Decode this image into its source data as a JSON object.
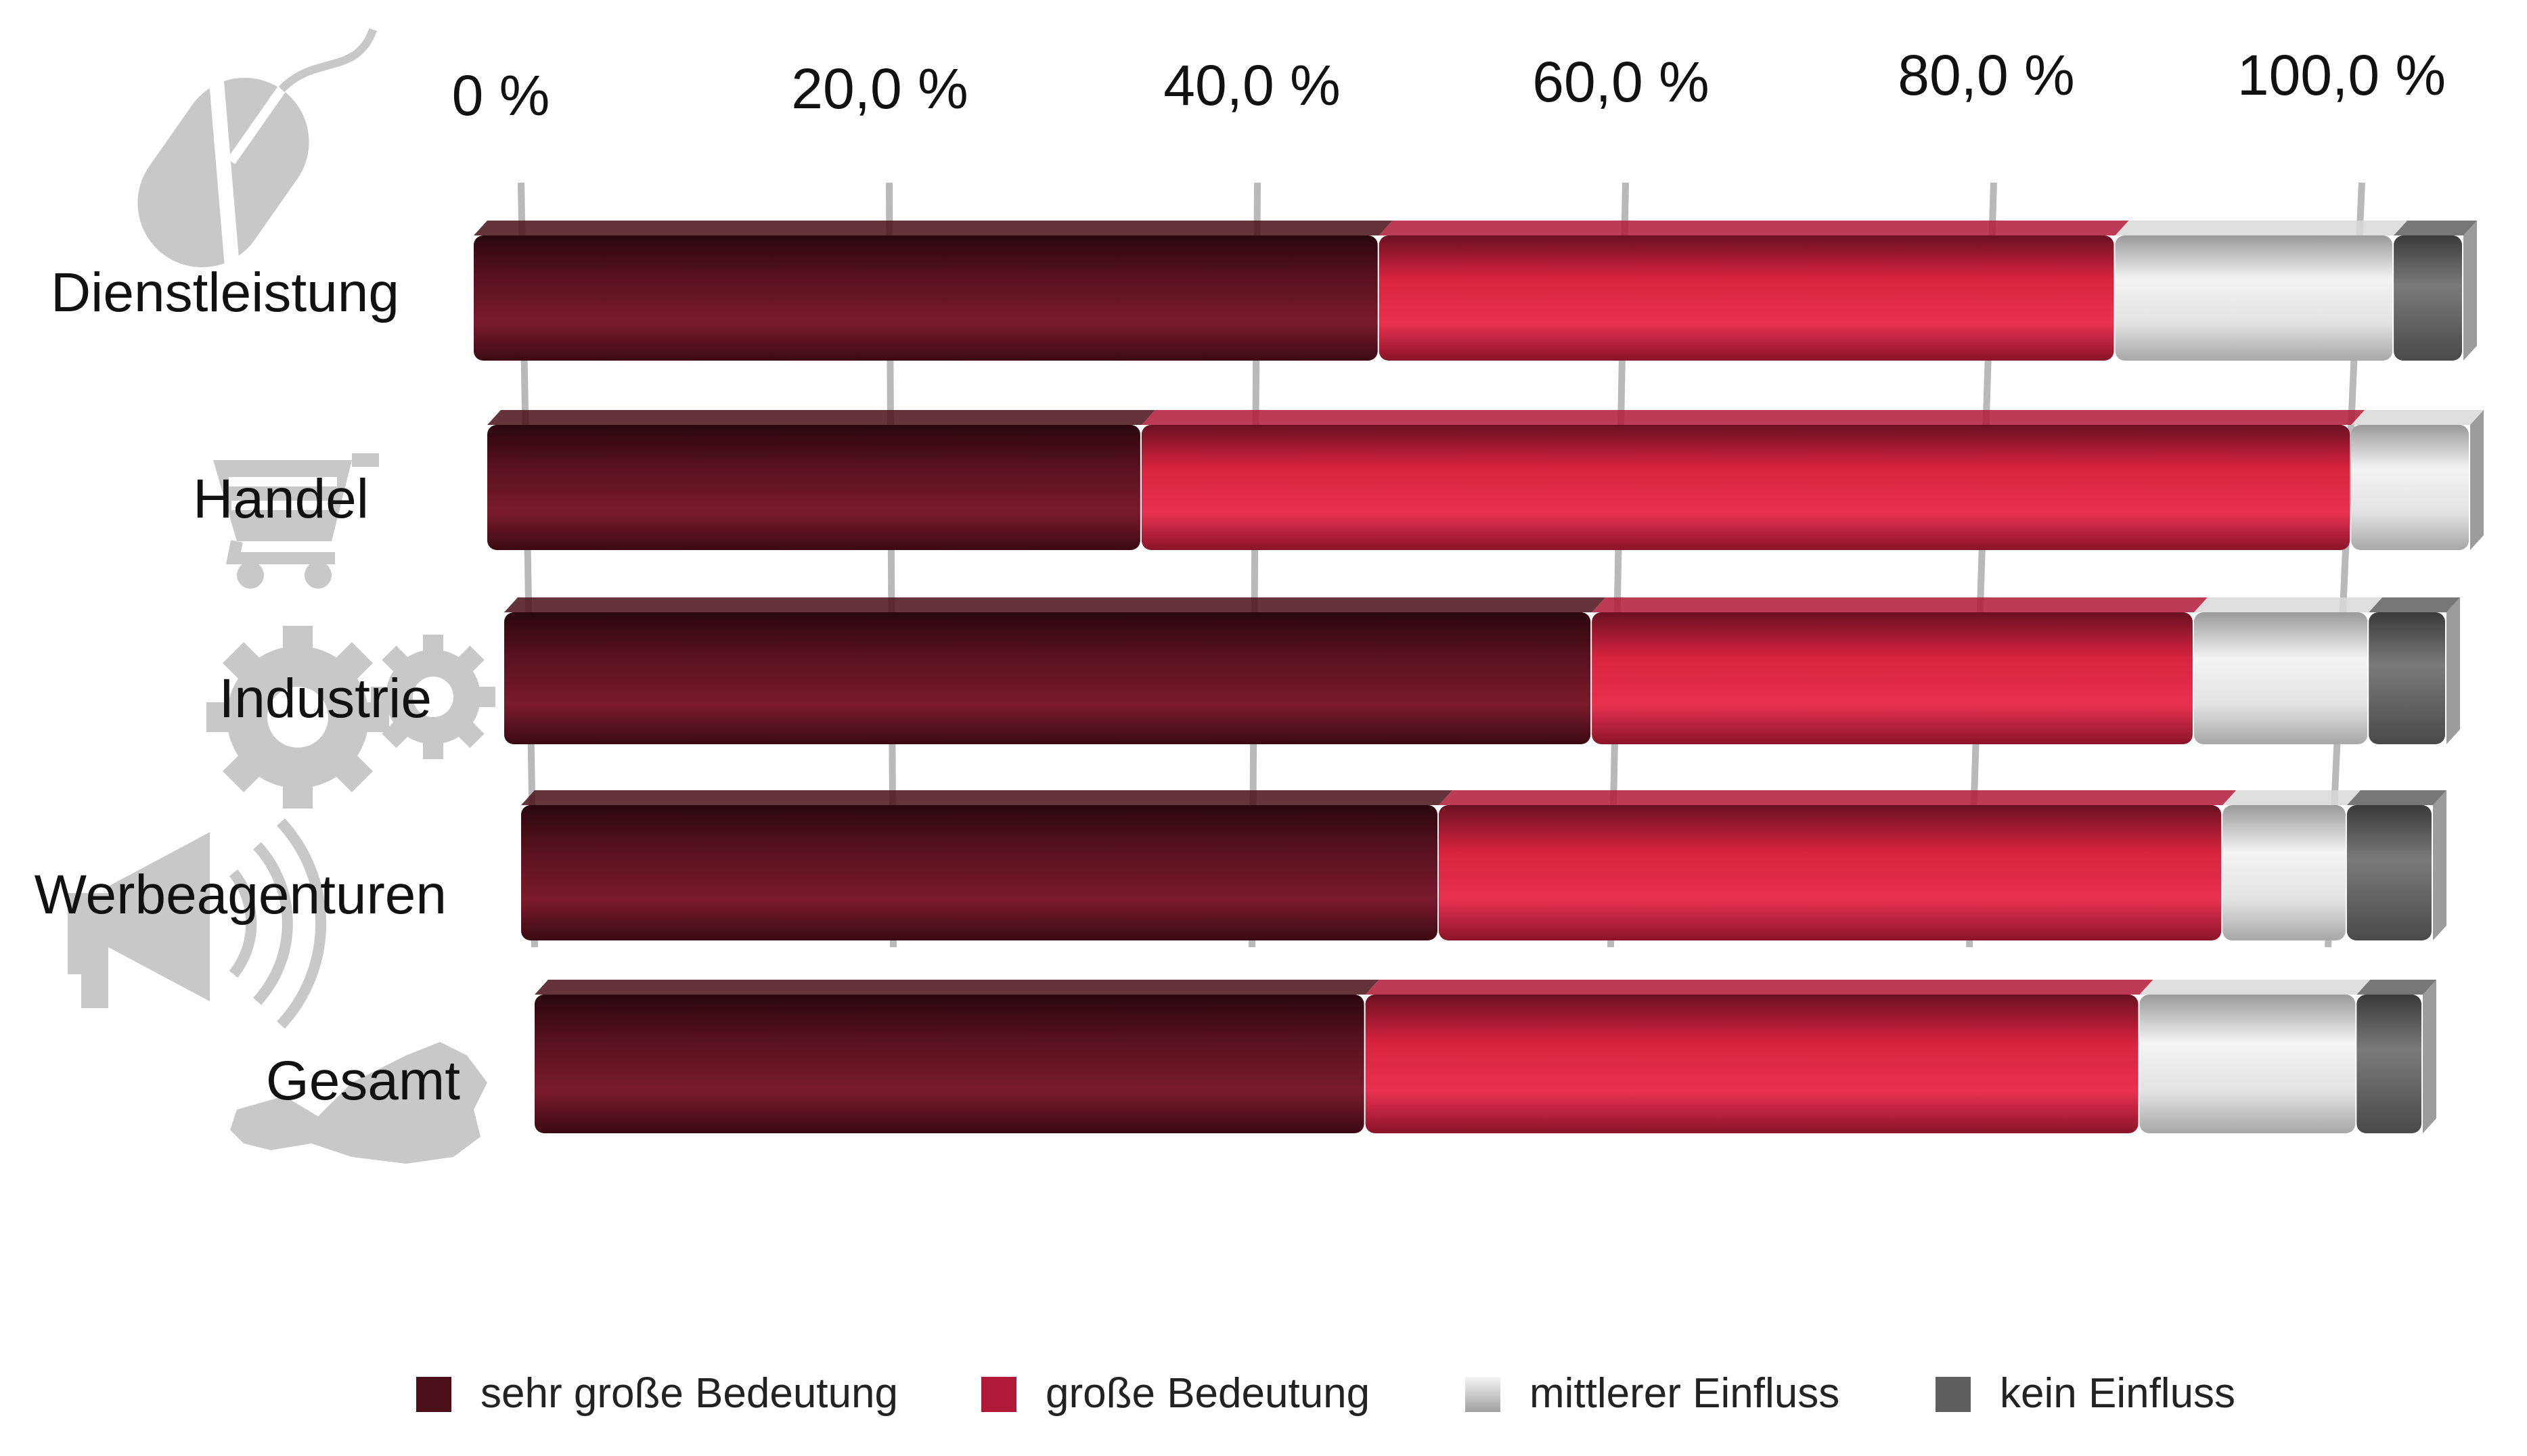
{
  "chart_data": {
    "type": "bar",
    "orientation": "horizontal",
    "stacked": true,
    "title": "",
    "xlabel": "",
    "ylabel": "",
    "xlim": [
      0,
      100
    ],
    "ticks": [
      "0 %",
      "20,0 %",
      "40,0 %",
      "60,0 %",
      "80,0 %",
      "100,0 %"
    ],
    "tick_values": [
      0,
      20,
      40,
      60,
      80,
      100
    ],
    "grid": true,
    "legend_position": "bottom",
    "categories": [
      "Dienstleistung",
      "Handel",
      "Industrie",
      "Werbeagenturen",
      "Gesamt"
    ],
    "category_icons": [
      "computer-mouse-icon",
      "shopping-cart-icon",
      "gears-icon",
      "megaphone-icon",
      "austria-map-icon"
    ],
    "series": [
      {
        "name": "sehr große Bedeutung",
        "color": "#4a0f18",
        "values": [
          45.5,
          33.0,
          56.0,
          48.0,
          44.0
        ]
      },
      {
        "name": "große Bedeutung",
        "color": "#b01a38",
        "values": [
          37.0,
          61.0,
          31.0,
          41.0,
          41.0
        ]
      },
      {
        "name": "mittlerer Einfluss",
        "color": "#d8d8d8",
        "values": [
          14.0,
          6.0,
          9.0,
          6.5,
          11.5
        ]
      },
      {
        "name": "kein Einfluss",
        "color": "#5f5f5f",
        "values": [
          3.5,
          0.0,
          4.0,
          4.5,
          3.5
        ]
      }
    ]
  }
}
